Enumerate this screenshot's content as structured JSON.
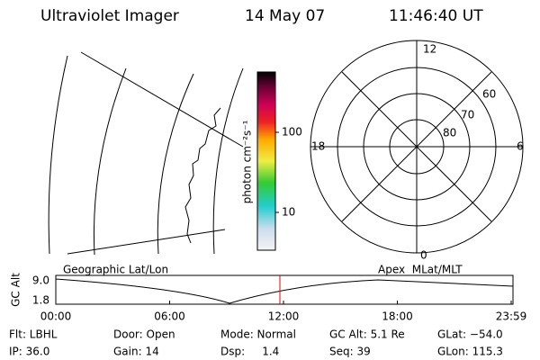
{
  "header": {
    "title": "Ultraviolet Imager",
    "date": "14 May 07",
    "time": "11:46:40 UT"
  },
  "colorbar": {
    "label": "photon cm⁻²s⁻¹",
    "ticks": [
      "100",
      "10"
    ]
  },
  "polar": {
    "top": "12",
    "bottom": "0",
    "left": "18",
    "right": "6",
    "rings": [
      "60",
      "70",
      "80"
    ]
  },
  "timeline": {
    "left_title": "Geographic Lat/Lon",
    "right_title": "Apex  MLat/MLT",
    "y_label": "GC Alt",
    "yticks": [
      "9.0",
      "1.8"
    ],
    "xticks": [
      "00:00",
      "06:00",
      "12:00",
      "18:00",
      "23:59"
    ]
  },
  "info": {
    "rows": [
      [
        "Flt: LBHL",
        "Door: Open",
        "Mode: Normal",
        "GC Alt: 5.1 Re",
        "GLat: −54.0"
      ],
      [
        "IP: 36.0",
        "Gain: 14",
        "Dsp:     1.4",
        "Seq: 39",
        "GLon: 115.3"
      ]
    ]
  }
}
